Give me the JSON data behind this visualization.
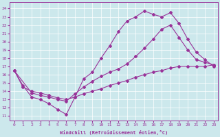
{
  "xlabel": "Windchill (Refroidissement éolien,°C)",
  "xlim": [
    -0.5,
    23.5
  ],
  "ylim": [
    10.5,
    24.8
  ],
  "yticks": [
    11,
    12,
    13,
    14,
    15,
    16,
    17,
    18,
    19,
    20,
    21,
    22,
    23,
    24
  ],
  "xticks": [
    0,
    1,
    2,
    3,
    4,
    5,
    6,
    7,
    8,
    9,
    10,
    11,
    12,
    13,
    14,
    15,
    16,
    17,
    18,
    19,
    20,
    21,
    22,
    23
  ],
  "line_color": "#993399",
  "bg_color": "#cce8ec",
  "line1_x": [
    0,
    1,
    2,
    3,
    4,
    5,
    6,
    7,
    8,
    9,
    10,
    11,
    12,
    13,
    14,
    15,
    16,
    17,
    18,
    19,
    20,
    21,
    22,
    23
  ],
  "line1_y": [
    16.5,
    14.7,
    13.3,
    13.0,
    12.5,
    11.8,
    11.2,
    13.3,
    15.5,
    16.3,
    18.0,
    19.5,
    21.2,
    22.5,
    23.0,
    23.7,
    23.3,
    23.0,
    23.5,
    22.2,
    20.3,
    18.7,
    17.8,
    17.0
  ],
  "line2_x": [
    0,
    2,
    3,
    4,
    5,
    6,
    7,
    8,
    9,
    10,
    11,
    12,
    13,
    14,
    15,
    16,
    17,
    18,
    19,
    20,
    21,
    22,
    23
  ],
  "line2_y": [
    16.5,
    13.8,
    13.5,
    13.3,
    13.0,
    12.8,
    13.7,
    14.5,
    15.2,
    15.8,
    16.3,
    16.7,
    17.3,
    18.2,
    19.2,
    20.3,
    21.5,
    22.0,
    20.5,
    19.0,
    17.8,
    17.5,
    17.2
  ],
  "line3_x": [
    0,
    1,
    2,
    3,
    4,
    5,
    6,
    7,
    8,
    9,
    10,
    11,
    12,
    13,
    14,
    15,
    16,
    17,
    18,
    19,
    20,
    21,
    22,
    23
  ],
  "line3_y": [
    16.5,
    14.5,
    14.0,
    13.8,
    13.5,
    13.2,
    13.0,
    13.3,
    13.7,
    14.0,
    14.3,
    14.7,
    15.0,
    15.3,
    15.7,
    16.0,
    16.3,
    16.5,
    16.8,
    17.0,
    17.0,
    17.0,
    17.0,
    17.2
  ]
}
